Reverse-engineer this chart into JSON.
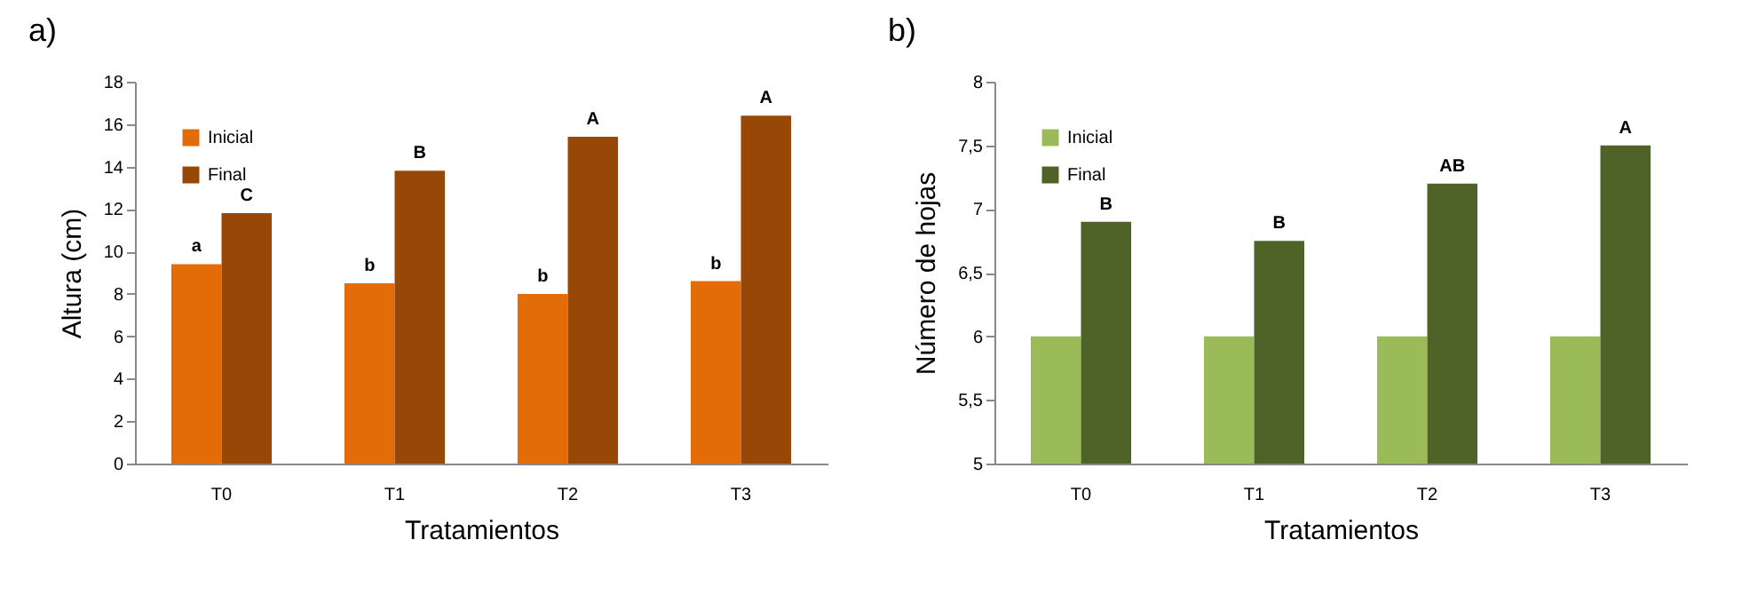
{
  "chart_data": [
    {
      "type": "bar",
      "title": "a)",
      "xlabel": "Tratamientos",
      "ylabel": "Altura (cm)",
      "categories": [
        "T0",
        "T1",
        "T2",
        "T3"
      ],
      "series": [
        {
          "name": "Inicial",
          "color": "#e36c09",
          "values": [
            9.4,
            8.5,
            8.0,
            8.6
          ]
        },
        {
          "name": "Final",
          "color": "#974706",
          "values": [
            11.8,
            13.8,
            15.4,
            16.4
          ]
        }
      ],
      "ylim": [
        0,
        18
      ],
      "yticks": [
        0,
        2,
        4,
        6,
        8,
        10,
        12,
        14,
        16,
        18
      ],
      "grid": false,
      "legend": "top left",
      "annotations": [
        {
          "text": "a",
          "x": "T0",
          "y": 9.4
        },
        {
          "text": "b",
          "x": "T1",
          "y": 8.5
        },
        {
          "text": "b",
          "x": "T2",
          "y": 8.0
        },
        {
          "text": "b",
          "x": "T3",
          "y": 8.6
        },
        {
          "text": "C",
          "x": "T0",
          "y": 11.8
        },
        {
          "text": "B",
          "x": "T1",
          "y": 13.8
        },
        {
          "text": "A",
          "x": "T2",
          "y": 15.4
        },
        {
          "text": "A",
          "x": "T3",
          "y": 16.4
        }
      ]
    },
    {
      "type": "bar",
      "title": "b)",
      "xlabel": "Tratamientos",
      "ylabel": "Número de hojas",
      "categories": [
        "T0",
        "T1",
        "T2",
        "T3"
      ],
      "series": [
        {
          "name": "Inicial",
          "color": "#9bbb59",
          "values": [
            6,
            6,
            6,
            6
          ]
        },
        {
          "name": "Final",
          "color": "#4f6228",
          "values": [
            6.9,
            6.75,
            7.2,
            7.5
          ]
        }
      ],
      "ylim": [
        5,
        8
      ],
      "yticks": [
        5,
        {
          "value": 5.5,
          "label": "5,5"
        },
        6,
        {
          "value": 6.5,
          "label": "6,5"
        },
        7,
        {
          "value": 7.5,
          "label": "7,5"
        },
        8
      ],
      "grid": false,
      "legend": "top left",
      "annotations": [
        {
          "text": "B",
          "x": "T0",
          "y": 6.9
        },
        {
          "text": "B",
          "x": "T1",
          "y": 6.75
        },
        {
          "text": "AB",
          "x": "T2",
          "y": 7.2
        },
        {
          "text": "A",
          "x": "T3",
          "y": 7.5
        }
      ]
    }
  ]
}
